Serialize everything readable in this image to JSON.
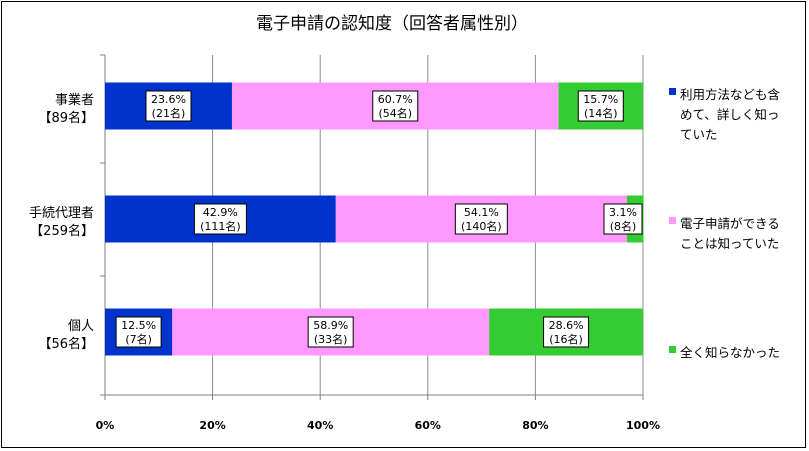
{
  "chart_data": {
    "type": "bar",
    "stacked": true,
    "orientation": "horizontal",
    "title": "電子申請の認知度（回答者属性別）",
    "categories": [
      [
        "事業者",
        "【89名】"
      ],
      [
        "手続代理者",
        "【259名】"
      ],
      [
        "個人",
        "【56名】"
      ]
    ],
    "series": [
      {
        "name": "利用方法なども含めて、詳しく知っていた",
        "legend_lines": [
          "利用方法なども含",
          "めて、詳しく知っ",
          "ていた"
        ],
        "color": "#0033cc",
        "values": [
          23.6,
          42.9,
          12.5
        ],
        "labels": [
          [
            "23.6%",
            "(21名)"
          ],
          [
            "42.9%",
            "(111名)"
          ],
          [
            "12.5%",
            "(7名)"
          ]
        ]
      },
      {
        "name": "電子申請ができることは知っていた",
        "legend_lines": [
          "電子申請ができる",
          "ことは知っていた"
        ],
        "color": "#ff99ff",
        "values": [
          60.7,
          54.1,
          58.9
        ],
        "labels": [
          [
            "60.7%",
            "(54名)"
          ],
          [
            "54.1%",
            "(140名)"
          ],
          [
            "58.9%",
            "(33名)"
          ]
        ]
      },
      {
        "name": "全く知らなかった",
        "legend_lines": [
          "全く知らなかった"
        ],
        "color": "#33cc33",
        "values": [
          15.7,
          3.1,
          28.6
        ],
        "labels": [
          [
            "15.7%",
            "(14名)"
          ],
          [
            "3.1%",
            "(8名)"
          ],
          [
            "28.6%",
            "(16名)"
          ]
        ]
      }
    ],
    "xlim": [
      0,
      100
    ],
    "xticks": [
      "0%",
      "20%",
      "40%",
      "60%",
      "80%",
      "100%"
    ],
    "grid": true,
    "legend_position": "right"
  }
}
